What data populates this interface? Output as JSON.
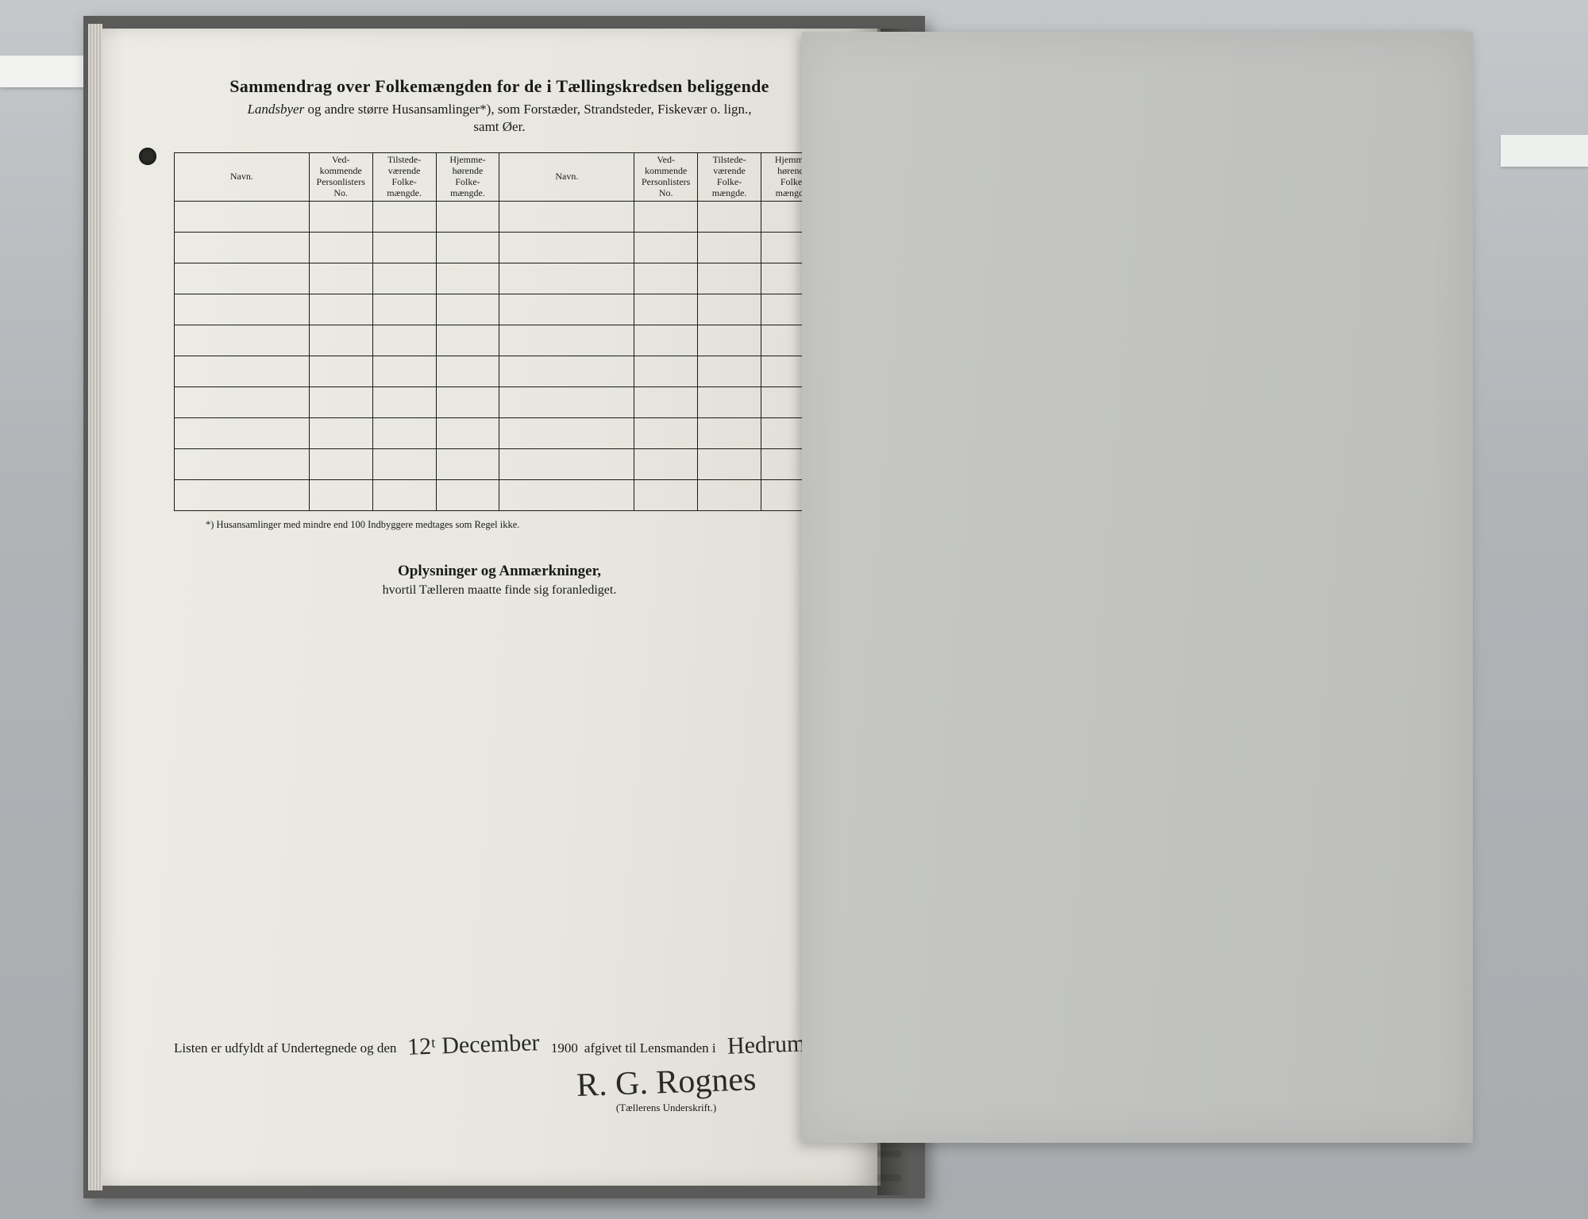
{
  "header": {
    "title": "Sammendrag over Folkemængden for de i Tællingskredsen beliggende",
    "subtitle_italic": "Landsbyer",
    "subtitle_rest": " og andre større Husansamlinger*), som Forstæder, Strandsteder, Fiskevær o. lign.,",
    "subtitle2_prefix": "samt ",
    "subtitle2_italic": "Øer."
  },
  "columns": {
    "navn": "Navn.",
    "vedk": "Ved-\nkommende\nPersonlisters\nNo.",
    "tilst": "Tilstede-\nværende\nFolke-\nmængde.",
    "hjem": "Hjemme-\nhørende\nFolke-\nmængde."
  },
  "body_row_count": 10,
  "footnote": "*) Husansamlinger med mindre end 100 Indbyggere medtages som Regel ikke.",
  "notes": {
    "title": "Oplysninger og Anmærkninger,",
    "sub": "hvortil Tælleren maatte finde sig foranlediget."
  },
  "signature": {
    "line_a": "Listen er udfyldt af Undertegnede og den",
    "date_hand": "12ᵗ December",
    "year_print": "1900",
    "line_b": " afgivet til Lensmanden i",
    "place_hand": "Hedrum",
    "name_hand": "R. G. Rognes",
    "caption": "(Tællerens Underskrift.)"
  },
  "colors": {
    "page": "#ecebe4",
    "ink": "#1a1a18",
    "overlay": "#c7c8c6",
    "desk": "#b8bcbf"
  }
}
